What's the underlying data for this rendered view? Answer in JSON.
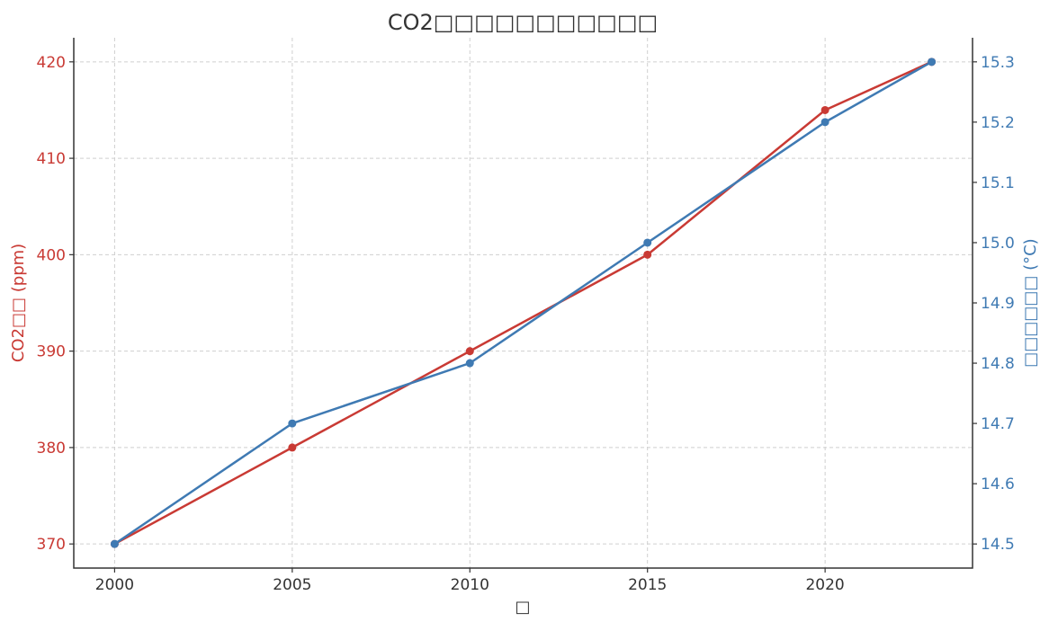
{
  "chart_data": {
    "type": "line",
    "title": "CO2□□□□□□□□□□□",
    "xlabel": "□",
    "ylabel_left": "CO2□□ (ppm)",
    "ylabel_right": "□□□□□□ (°C)",
    "x": [
      2000,
      2005,
      2010,
      2015,
      2020,
      2023
    ],
    "x_ticks": [
      2000,
      2005,
      2010,
      2015,
      2020
    ],
    "xlim": [
      1998.85,
      2024.15
    ],
    "series": [
      {
        "axis": "left",
        "values": [
          370,
          380,
          390,
          400,
          415,
          420
        ],
        "color": "#c93a34"
      },
      {
        "axis": "right",
        "values": [
          14.5,
          14.7,
          14.8,
          15.0,
          15.2,
          15.3
        ],
        "color": "#3f7ab3"
      }
    ],
    "ylim_left": [
      367.5,
      422.5
    ],
    "yticks_left": [
      "370",
      "380",
      "390",
      "400",
      "410",
      "420"
    ],
    "ylim_right": [
      14.46,
      15.34
    ],
    "yticks_right": [
      "14.5",
      "14.6",
      "14.7",
      "14.8",
      "14.9",
      "15.0",
      "15.1",
      "15.2",
      "15.3"
    ],
    "grid": true,
    "left_axis_color": "#c93a34",
    "right_axis_color": "#3f7ab3"
  }
}
